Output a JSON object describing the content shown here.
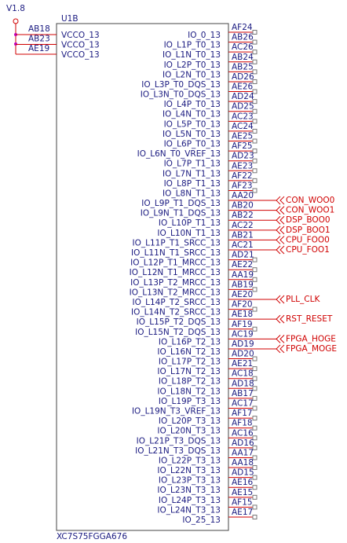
{
  "power": {
    "label": "V1.8"
  },
  "component": {
    "ref": "U1B",
    "part": "XC7S75FGGA676"
  },
  "left_pins": [
    {
      "number": "AB18",
      "name": "VCCO_13"
    },
    {
      "number": "AB23",
      "name": "VCCO_13"
    },
    {
      "number": "AE19",
      "name": "VCCO_13"
    }
  ],
  "right_pins": [
    {
      "number": "AF24",
      "name": "IO_0_13"
    },
    {
      "number": "AB26",
      "name": "IO_L1P_T0_13"
    },
    {
      "number": "AC26",
      "name": "IO_L1N_T0_13"
    },
    {
      "number": "AB24",
      "name": "IO_L2P_T0_13"
    },
    {
      "number": "AB25",
      "name": "IO_L2N_T0_13"
    },
    {
      "number": "AD26",
      "name": "IO_L3P_T0_DQS_13"
    },
    {
      "number": "AE26",
      "name": "IO_L3N_T0_DQS_13"
    },
    {
      "number": "AD24",
      "name": "IO_L4P_T0_13"
    },
    {
      "number": "AD25",
      "name": "IO_L4N_T0_13"
    },
    {
      "number": "AC23",
      "name": "IO_L5P_T0_13"
    },
    {
      "number": "AC24",
      "name": "IO_L5N_T0_13"
    },
    {
      "number": "AE25",
      "name": "IO_L6P_T0_13"
    },
    {
      "number": "AF25",
      "name": "IO_L6N_T0_VREF_13"
    },
    {
      "number": "AD23",
      "name": "IO_L7P_T1_13"
    },
    {
      "number": "AE23",
      "name": "IO_L7N_T1_13"
    },
    {
      "number": "AF22",
      "name": "IO_L8P_T1_13"
    },
    {
      "number": "AF23",
      "name": "IO_L8N_T1_13"
    },
    {
      "number": "AA20",
      "name": "IO_L9P_T1_DQS_13",
      "net": "CON_WOO0"
    },
    {
      "number": "AB20",
      "name": "IO_L9N_T1_DQS_13",
      "net": "CON_WOO1"
    },
    {
      "number": "AB22",
      "name": "IO_L10P_T1_13",
      "net": "DSP_BOO0"
    },
    {
      "number": "AC22",
      "name": "IO_L10N_T1_13",
      "net": "DSP_BOO1"
    },
    {
      "number": "AB21",
      "name": "IO_L11P_T1_SRCC_13",
      "net": "CPU_FOO0"
    },
    {
      "number": "AC21",
      "name": "IO_L11N_T1_SRCC_13",
      "net": "CPU_FOO1"
    },
    {
      "number": "AD21",
      "name": "IO_L12P_T1_MRCC_13"
    },
    {
      "number": "AE22",
      "name": "IO_L12N_T1_MRCC_13"
    },
    {
      "number": "AA19",
      "name": "IO_L13P_T2_MRCC_13"
    },
    {
      "number": "AB19",
      "name": "IO_L13N_T2_MRCC_13"
    },
    {
      "number": "AE20",
      "name": "IO_L14P_T2_SRCC_13",
      "net": "PLL_CLK"
    },
    {
      "number": "AF20",
      "name": "IO_L14N_T2_SRCC_13"
    },
    {
      "number": "AE18",
      "name": "IO_L15P_T2_DQS_13",
      "net": "RST_RESET"
    },
    {
      "number": "AF19",
      "name": "IO_L15N_T2_DQS_13"
    },
    {
      "number": "AC19",
      "name": "IO_L16P_T2_13",
      "net": "FPGA_HOGE"
    },
    {
      "number": "AD19",
      "name": "IO_L16N_T2_13",
      "net": "FPGA_MOGE"
    },
    {
      "number": "AD20",
      "name": "IO_L17P_T2_13"
    },
    {
      "number": "AE21",
      "name": "IO_L17N_T2_13"
    },
    {
      "number": "AC18",
      "name": "IO_L18P_T2_13"
    },
    {
      "number": "AD18",
      "name": "IO_L18N_T2_13"
    },
    {
      "number": "AB17",
      "name": "IO_L19P_T3_13"
    },
    {
      "number": "AC17",
      "name": "IO_L19N_T3_VREF_13"
    },
    {
      "number": "AF17",
      "name": "IO_L20P_T3_13"
    },
    {
      "number": "AF18",
      "name": "IO_L20N_T3_13"
    },
    {
      "number": "AC16",
      "name": "IO_L21P_T3_DQS_13"
    },
    {
      "number": "AD16",
      "name": "IO_L21N_T3_DQS_13"
    },
    {
      "number": "AA17",
      "name": "IO_L22P_T3_13"
    },
    {
      "number": "AA18",
      "name": "IO_L22N_T3_13"
    },
    {
      "number": "AD15",
      "name": "IO_L23P_T3_13"
    },
    {
      "number": "AE16",
      "name": "IO_L23N_T3_13"
    },
    {
      "number": "AE15",
      "name": "IO_L24P_T3_13"
    },
    {
      "number": "AF15",
      "name": "IO_L24N_T3_13"
    },
    {
      "number": "AE17",
      "name": "IO_25_13"
    }
  ]
}
